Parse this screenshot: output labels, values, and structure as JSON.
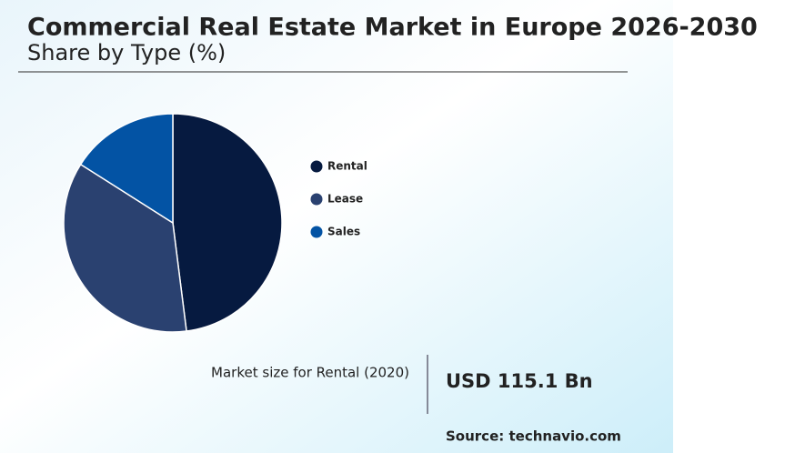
{
  "chart_data": {
    "type": "pie",
    "title": "Commercial Real Estate Market in Europe 2026-2030",
    "subtitle": "Share by Type (%)",
    "categories": [
      "Rental",
      "Lease",
      "Sales"
    ],
    "values": [
      48,
      36,
      16
    ],
    "colors": [
      "#061a40",
      "#2a4170",
      "#0353a4"
    ]
  },
  "market_size": {
    "label": "Market size for Rental (2020)",
    "value": "USD 115.1 Bn"
  },
  "source": "Source: technavio.com"
}
